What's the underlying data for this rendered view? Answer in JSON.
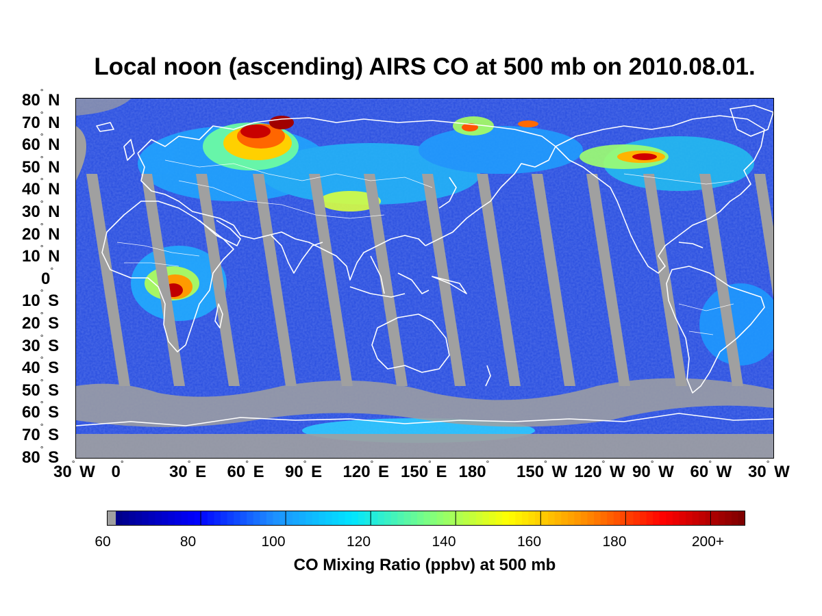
{
  "title": "Local  noon (ascending) AIRS CO at 500 mb on 2010.08.01.",
  "lat_labels": [
    {
      "value": "80",
      "hemi": "N"
    },
    {
      "value": "70",
      "hemi": "N"
    },
    {
      "value": "60",
      "hemi": "N"
    },
    {
      "value": "50",
      "hemi": "N"
    },
    {
      "value": "40",
      "hemi": "N"
    },
    {
      "value": "30",
      "hemi": "N"
    },
    {
      "value": "20",
      "hemi": "N"
    },
    {
      "value": "10",
      "hemi": "N"
    },
    {
      "value": "0",
      "hemi": ""
    },
    {
      "value": "10",
      "hemi": "S"
    },
    {
      "value": "20",
      "hemi": "S"
    },
    {
      "value": "30",
      "hemi": "S"
    },
    {
      "value": "40",
      "hemi": "S"
    },
    {
      "value": "50",
      "hemi": "S"
    },
    {
      "value": "60",
      "hemi": "S"
    },
    {
      "value": "70",
      "hemi": "S"
    },
    {
      "value": "80",
      "hemi": "S"
    }
  ],
  "lon_labels": [
    {
      "value": "30",
      "hemi": "W"
    },
    {
      "value": "0",
      "hemi": ""
    },
    {
      "value": "30",
      "hemi": "E"
    },
    {
      "value": "60",
      "hemi": "E"
    },
    {
      "value": "90",
      "hemi": "E"
    },
    {
      "value": "120",
      "hemi": "E"
    },
    {
      "value": "150",
      "hemi": "E"
    },
    {
      "value": "180",
      "hemi": ""
    },
    {
      "value": "150",
      "hemi": "W"
    },
    {
      "value": "120",
      "hemi": "W"
    },
    {
      "value": "90",
      "hemi": "W"
    },
    {
      "value": "60",
      "hemi": "W"
    },
    {
      "value": "30",
      "hemi": "W"
    }
  ],
  "colorbar": {
    "ticks": [
      "60",
      "80",
      "100",
      "120",
      "140",
      "160",
      "180",
      "200+"
    ],
    "label": "CO Mixing Ratio (ppbv) at 500 mb",
    "colors": [
      "#a0a0a0",
      "#00008b",
      "#0000ff",
      "#1e90ff",
      "#00e5ff",
      "#7fff7f",
      "#ffff00",
      "#ff8c00",
      "#ff0000",
      "#7f0000"
    ],
    "missing_color": "#a0a0a0"
  },
  "map": {
    "background_color": "#2a4fe0",
    "coastline_color": "#ffffff",
    "missing_data_color": "#a0a0a0",
    "lon_range": [
      -30,
      330
    ],
    "lat_range": [
      -80,
      80
    ]
  }
}
